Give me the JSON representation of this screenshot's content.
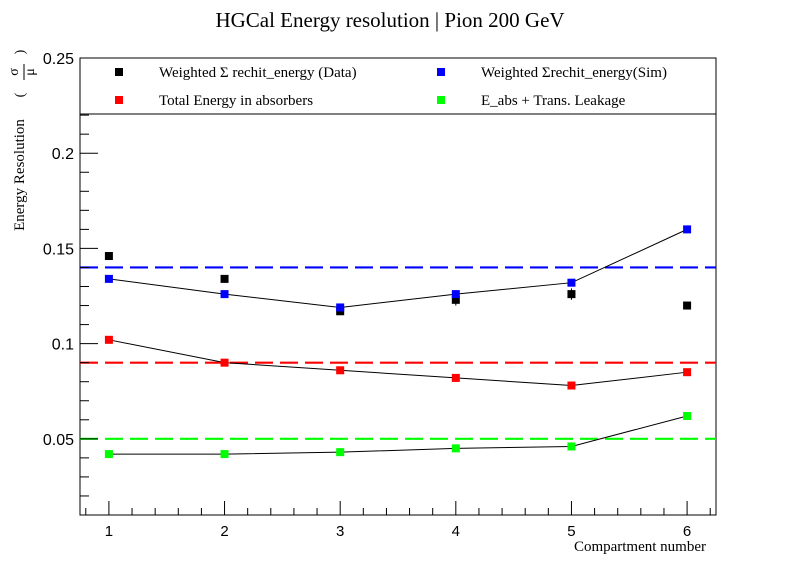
{
  "chart_data": {
    "type": "scatter",
    "title": "HGCal Energy resolution | Pion 200 GeV",
    "xlabel": "Compartment number",
    "ylabel": "Energy Resolution",
    "ylabel_sigma": "σ",
    "ylabel_mu": "μ",
    "xlim": [
      0.75,
      6.25
    ],
    "ylim": [
      0.01,
      0.25
    ],
    "x_ticks": [
      1,
      2,
      3,
      4,
      5,
      6
    ],
    "x_tick_labels": [
      "1",
      "2",
      "3",
      "4",
      "5",
      "6"
    ],
    "y_ticks": [
      0.05,
      0.1,
      0.15,
      0.2,
      0.25
    ],
    "y_tick_labels": [
      "0.05",
      "0.1",
      "0.15",
      "0.2",
      "0.25"
    ],
    "grid": false,
    "legend_position": "top",
    "series": [
      {
        "name": "Weighted Σ rechit_energy (Data)",
        "color": "#000000",
        "x": [
          1,
          2,
          3,
          4,
          5,
          6
        ],
        "y": [
          0.146,
          0.134,
          0.117,
          0.123,
          0.126,
          0.12
        ],
        "err": [
          0.002,
          0.002,
          0.002,
          0.003,
          0.003,
          0.002
        ],
        "connected": false
      },
      {
        "name": "Weighted Σrechit_energy(Sim)",
        "color": "#0000ff",
        "x": [
          1,
          2,
          3,
          4,
          5,
          6
        ],
        "y": [
          0.134,
          0.126,
          0.119,
          0.126,
          0.132,
          0.16
        ],
        "err": [
          0.001,
          0.001,
          0.001,
          0.001,
          0.001,
          0.002
        ],
        "connected": true
      },
      {
        "name": "Total Energy in absorbers",
        "color": "#ff0000",
        "x": [
          1,
          2,
          3,
          4,
          5,
          6
        ],
        "y": [
          0.102,
          0.09,
          0.086,
          0.082,
          0.078,
          0.085
        ],
        "err": [
          0.001,
          0.001,
          0.001,
          0.001,
          0.001,
          0.001
        ],
        "connected": true
      },
      {
        "name": "E_abs + Trans. Leakage",
        "color": "#00ff00",
        "x": [
          1,
          2,
          3,
          4,
          5,
          6
        ],
        "y": [
          0.042,
          0.042,
          0.043,
          0.045,
          0.046,
          0.062
        ],
        "err": [
          0.001,
          0.001,
          0.001,
          0.001,
          0.001,
          0.001
        ],
        "connected": true
      }
    ],
    "reference_lines": [
      {
        "y": 0.14,
        "color": "#0000ff"
      },
      {
        "y": 0.09,
        "color": "#ff0000"
      },
      {
        "y": 0.05,
        "color": "#00ff00"
      }
    ]
  }
}
